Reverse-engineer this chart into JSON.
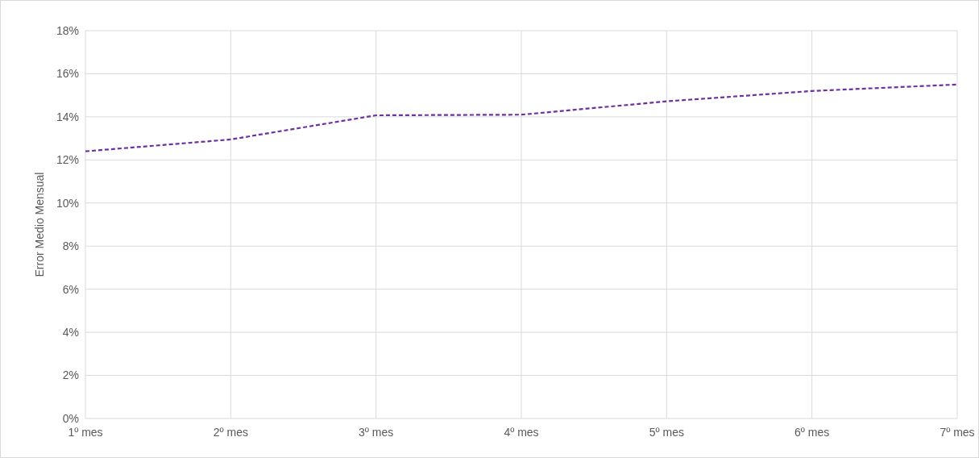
{
  "chart_data": {
    "type": "line",
    "ylabel": "Error Medio Mensual",
    "categories": [
      "1º mes",
      "2º mes",
      "3º mes",
      "4º mes",
      "5º mes",
      "6º mes",
      "7º mes"
    ],
    "series": [
      {
        "color": "#7030a0",
        "values": [
          12.4,
          12.95,
          14.07,
          14.1,
          14.72,
          15.2,
          15.5
        ]
      }
    ],
    "ylim": [
      0,
      18
    ],
    "yticks": [
      {
        "value": 0,
        "label": "0%"
      },
      {
        "value": 2,
        "label": "2%"
      },
      {
        "value": 4,
        "label": "4%"
      },
      {
        "value": 6,
        "label": "6%"
      },
      {
        "value": 8,
        "label": "8%"
      },
      {
        "value": 10,
        "label": "10%"
      },
      {
        "value": 12,
        "label": "12%"
      },
      {
        "value": 14,
        "label": "14%"
      },
      {
        "value": 16,
        "label": "16%"
      },
      {
        "value": 18,
        "label": "18%"
      }
    ],
    "grid": true,
    "line_style": "dashed",
    "marker": "none"
  }
}
